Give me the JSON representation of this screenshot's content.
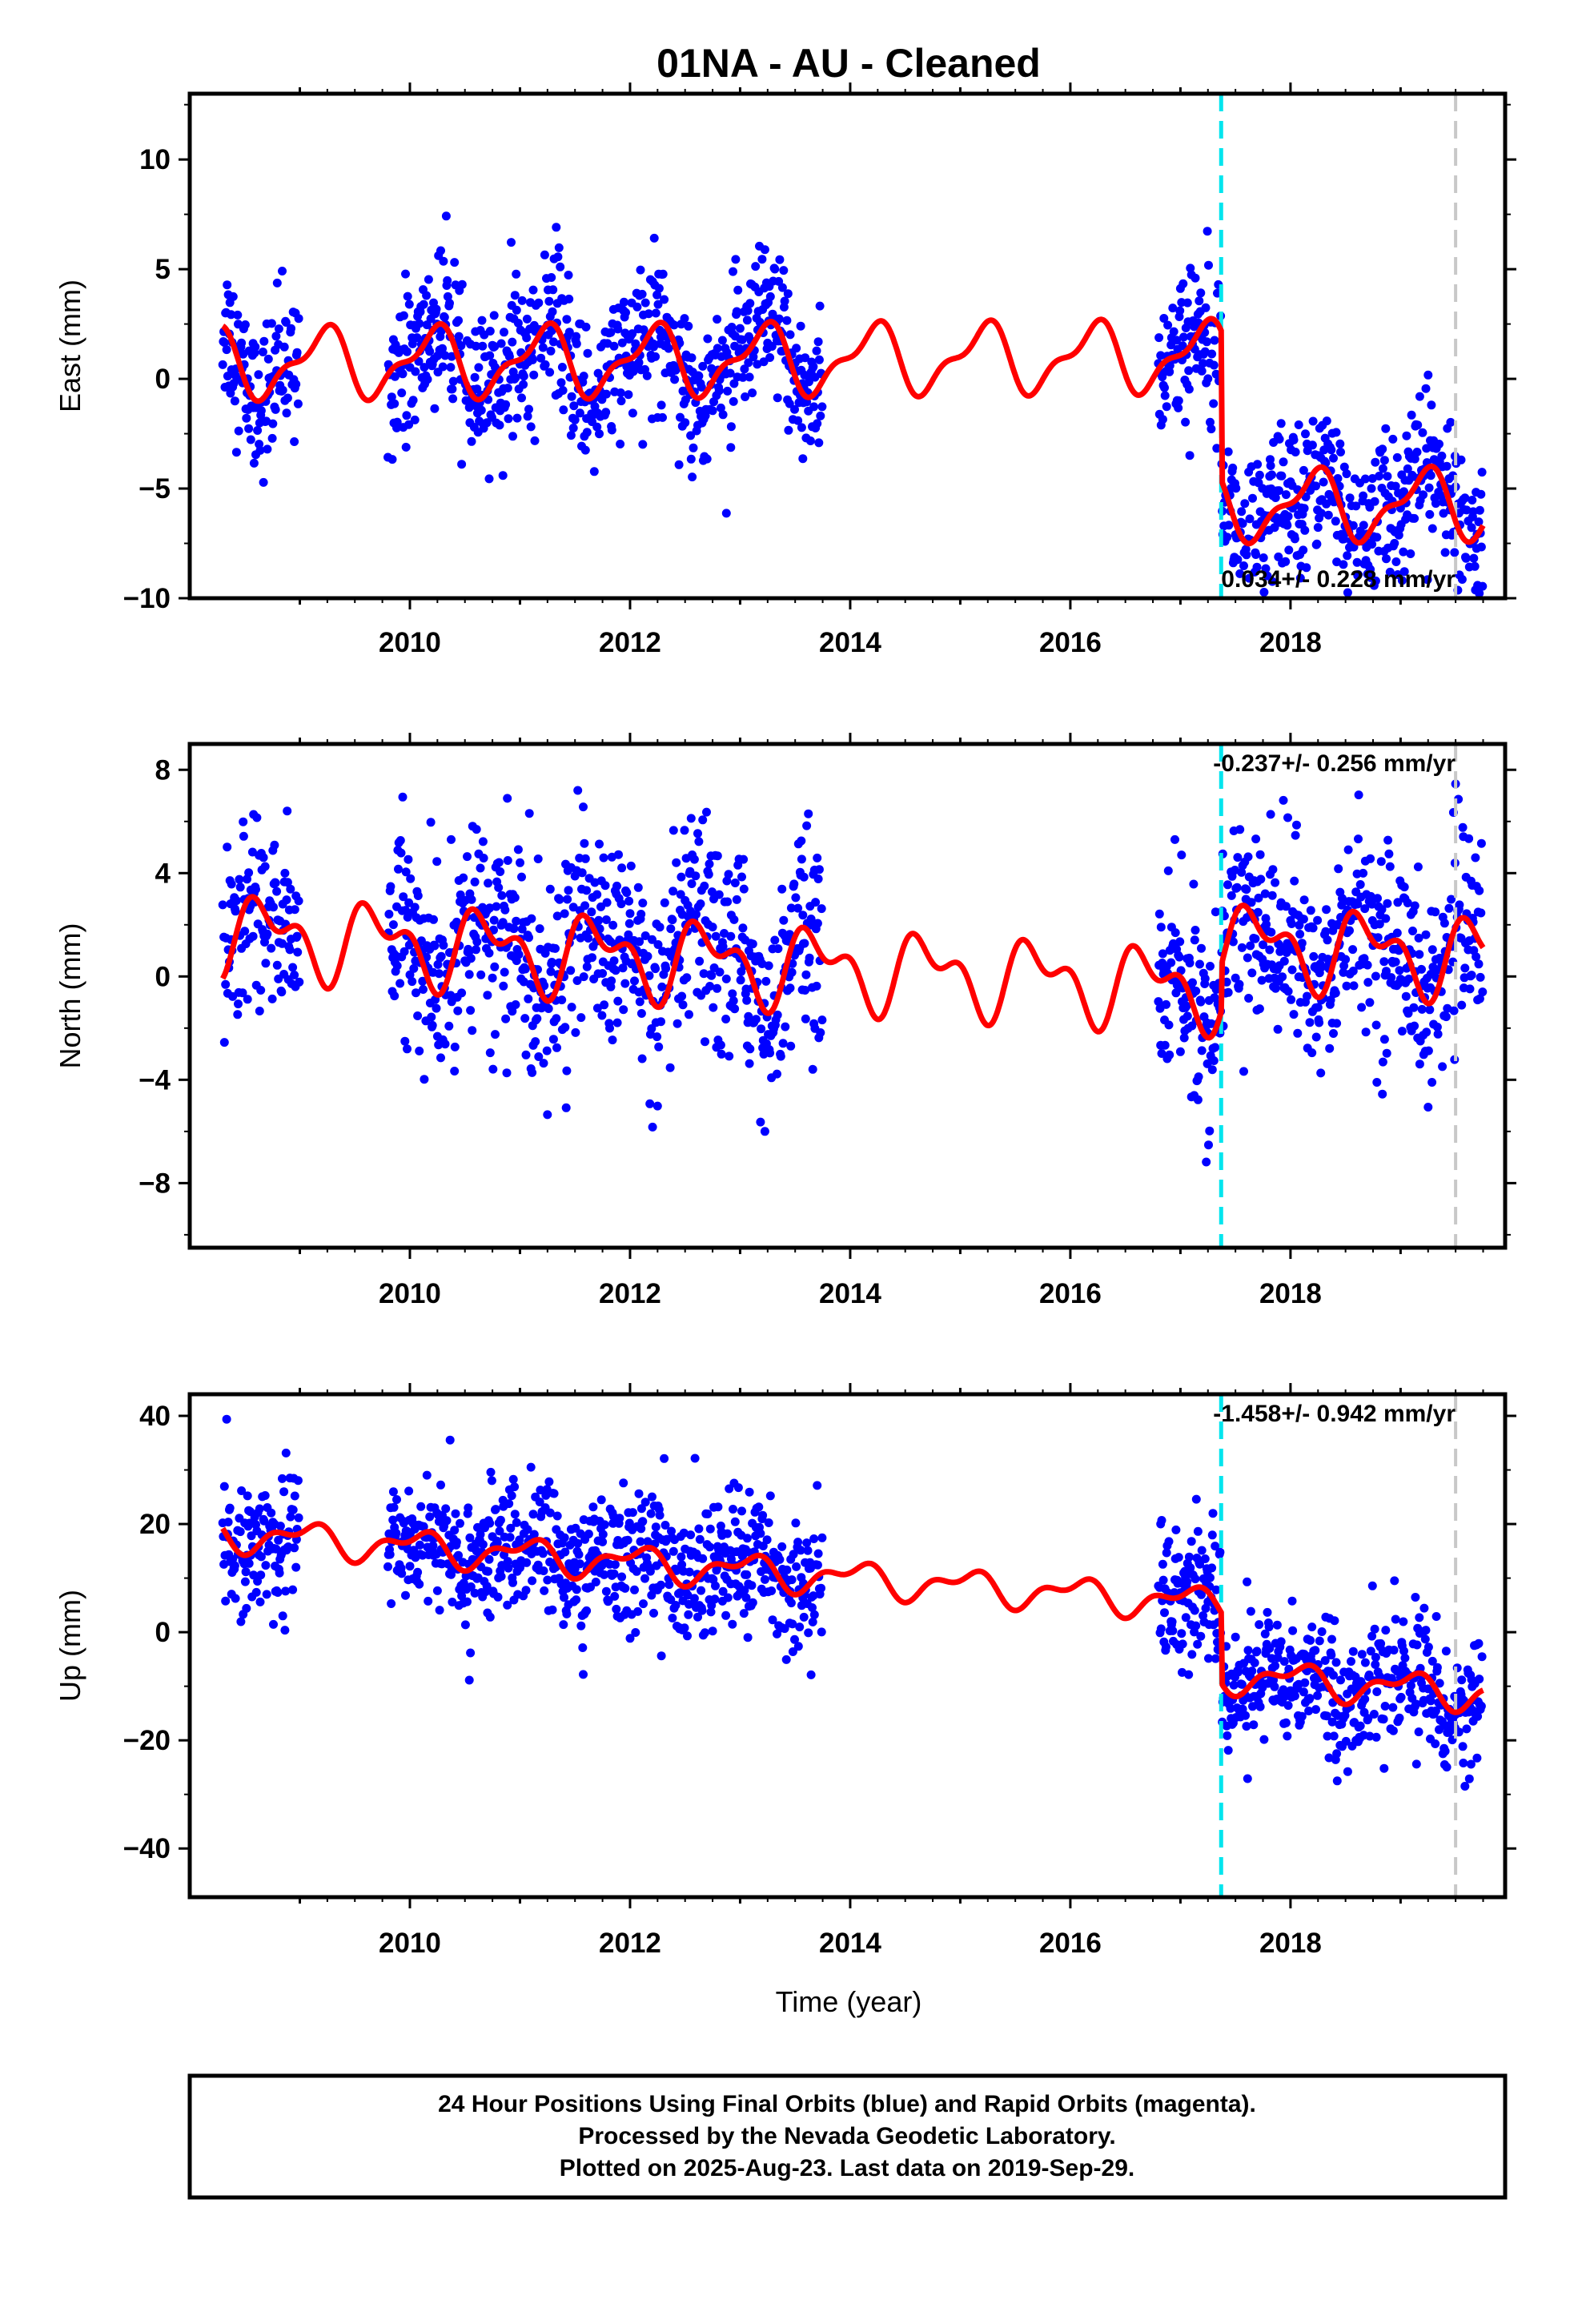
{
  "figure": {
    "title": "01NA  - AU - Cleaned",
    "xlabel": "Time (year)",
    "footer": [
      "24 Hour Positions Using Final Orbits (blue) and Rapid Orbits (magenta).",
      "Processed by the Nevada Geodetic Laboratory.",
      "Plotted on 2025-Aug-23. Last data on 2019-Sep-29."
    ]
  },
  "chart_data": [
    {
      "type": "scatter",
      "name": "east",
      "ylabel": "East (mm)",
      "xlim": [
        2008.0,
        2019.95
      ],
      "ylim": [
        -10,
        13
      ],
      "x_ticks": [
        2010,
        2012,
        2014,
        2016,
        2018
      ],
      "y_ticks": [
        -10,
        -5,
        0,
        5,
        10
      ],
      "rate_annotation": "0.034+/- 0.228 mm/yr",
      "equipment_change_epochs": [
        2017.37
      ],
      "other_event_epochs": [
        2019.5
      ],
      "colors": {
        "points": "#0000ff",
        "model": "#ff0000",
        "equipment": "#00e5ee",
        "event": "#c8c8c8"
      },
      "data_segments": [
        [
          2008.3,
          2009.0
        ],
        [
          2009.8,
          2013.75
        ],
        [
          2016.8,
          2019.75
        ]
      ],
      "model_params": {
        "offset": 0.9,
        "annual_amp": 1.4,
        "annual_phase": 0.05,
        "semiannual_amp": 0.6,
        "semiannual_phase": 0.3,
        "step_epoch": 2017.37,
        "step": -6.8,
        "trend": 0.034
      },
      "scatter_sd": 1.7,
      "approx_points": "synthetic daily positions approximating the plotted scatter"
    },
    {
      "type": "scatter",
      "name": "north",
      "ylabel": "North (mm)",
      "xlim": [
        2008.0,
        2019.95
      ],
      "ylim": [
        -10.5,
        9
      ],
      "x_ticks": [
        2010,
        2012,
        2014,
        2016,
        2018
      ],
      "y_ticks": [
        -8,
        -4,
        0,
        4,
        8
      ],
      "rate_annotation": "-0.237+/- 0.256 mm/yr",
      "equipment_change_epochs": [
        2017.37
      ],
      "other_event_epochs": [
        2019.5
      ],
      "colors": {
        "points": "#0000ff",
        "model": "#ff0000",
        "equipment": "#00e5ee",
        "event": "#c8c8c8"
      },
      "data_segments": [
        [
          2008.3,
          2009.0
        ],
        [
          2009.8,
          2013.75
        ],
        [
          2016.8,
          2019.75
        ]
      ],
      "model_params": {
        "offset": 0.3,
        "annual_amp": 1.2,
        "annual_phase": 0.55,
        "semiannual_amp": 0.8,
        "semiannual_phase": 0.1,
        "step_epoch": 2017.37,
        "step": 1.8,
        "trend": -0.237
      },
      "scatter_sd": 1.9,
      "approx_points": "synthetic daily positions approximating the plotted scatter"
    },
    {
      "type": "scatter",
      "name": "up",
      "ylabel": "Up (mm)",
      "xlim": [
        2008.0,
        2019.95
      ],
      "ylim": [
        -49,
        44
      ],
      "x_ticks": [
        2010,
        2012,
        2014,
        2016,
        2018
      ],
      "y_ticks": [
        -40,
        -20,
        0,
        20,
        40
      ],
      "rate_annotation": "-1.458+/- 0.942 mm/yr",
      "equipment_change_epochs": [
        2017.37
      ],
      "other_event_epochs": [
        2019.5
      ],
      "colors": {
        "points": "#0000ff",
        "model": "#ff0000",
        "equipment": "#00e5ee",
        "event": "#c8c8c8"
      },
      "data_segments": [
        [
          2008.3,
          2009.0
        ],
        [
          2009.8,
          2013.75
        ],
        [
          2016.8,
          2019.75
        ]
      ],
      "model_params": {
        "offset": 10.0,
        "annual_amp": 2.5,
        "annual_phase": 0.2,
        "semiannual_amp": 1.5,
        "semiannual_phase": 0.4,
        "step_epoch": 2017.37,
        "step": -13.0,
        "trend": -1.458
      },
      "scatter_sd": 6.0,
      "approx_points": "synthetic daily positions approximating the plotted scatter"
    }
  ]
}
